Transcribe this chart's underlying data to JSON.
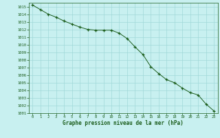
{
  "x": [
    0,
    1,
    2,
    3,
    4,
    5,
    6,
    7,
    8,
    9,
    10,
    11,
    12,
    13,
    14,
    15,
    16,
    17,
    18,
    19,
    20,
    21,
    22,
    23
  ],
  "y": [
    1015.2,
    1014.6,
    1014.0,
    1013.6,
    1013.1,
    1012.7,
    1012.3,
    1012.0,
    1011.9,
    1011.9,
    1011.9,
    1011.5,
    1010.8,
    1009.7,
    1008.7,
    1007.1,
    1006.2,
    1005.4,
    1005.0,
    1004.3,
    1003.7,
    1003.4,
    1002.2,
    1001.3
  ],
  "line_color": "#1a5c1a",
  "marker": "+",
  "marker_color": "#1a5c1a",
  "bg_color": "#c8f0f0",
  "grid_color": "#a0d8d8",
  "xlabel": "Graphe pression niveau de la mer (hPa)",
  "xlabel_color": "#1a5c1a",
  "tick_color": "#1a5c1a",
  "xlim": [
    -0.5,
    23.5
  ],
  "ylim": [
    1001,
    1015.5
  ],
  "yticks": [
    1001,
    1002,
    1003,
    1004,
    1005,
    1006,
    1007,
    1008,
    1009,
    1010,
    1011,
    1012,
    1013,
    1014,
    1015
  ],
  "xticks": [
    0,
    1,
    2,
    3,
    4,
    5,
    6,
    7,
    8,
    9,
    10,
    11,
    12,
    13,
    14,
    15,
    16,
    17,
    18,
    19,
    20,
    21,
    22,
    23
  ],
  "tick_fontsize": 4.0,
  "xlabel_fontsize": 5.5,
  "font_family": "monospace"
}
